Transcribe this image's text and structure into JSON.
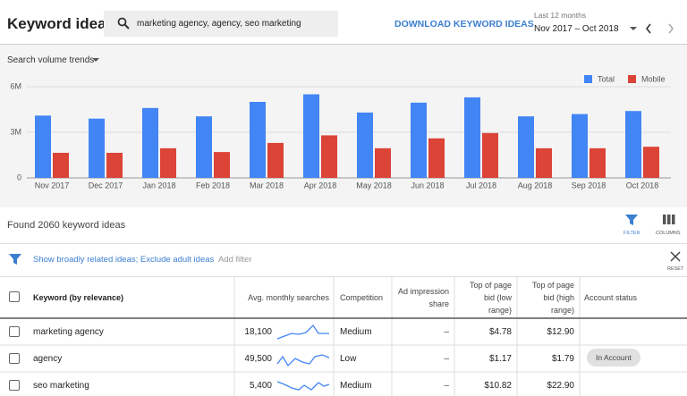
{
  "header": {
    "title": "Keyword ideas",
    "search": "marketing agency, agency, seo marketing",
    "download": "DOWNLOAD KEYWORD IDEAS",
    "range_label": "Last 12 months",
    "range": "Nov 2017 – Oct 2018"
  },
  "chart_data": {
    "type": "bar",
    "title": "Search volume trends",
    "categories": [
      "Nov 2017",
      "Dec 2017",
      "Jan 2018",
      "Feb 2018",
      "Mar 2018",
      "Apr 2018",
      "May 2018",
      "Jun 2018",
      "Jul 2018",
      "Aug 2018",
      "Sep 2018",
      "Oct 2018"
    ],
    "series": [
      {
        "name": "Total",
        "color": "#4285f4",
        "values": [
          4100000,
          3900000,
          4600000,
          4050000,
          5000000,
          5500000,
          4300000,
          4950000,
          5300000,
          4050000,
          4200000,
          4400000
        ]
      },
      {
        "name": "Mobile",
        "color": "#db4437",
        "values": [
          1650000,
          1650000,
          1950000,
          1700000,
          2300000,
          2800000,
          1950000,
          2600000,
          2950000,
          1950000,
          1950000,
          2050000
        ]
      }
    ],
    "ylim": [
      0,
      6000000
    ],
    "yticks": [
      0,
      {
        "value": 3000000,
        "label": "3M"
      },
      {
        "value": 6000000,
        "label": "6M"
      }
    ],
    "grid": true,
    "legend": "top-right"
  },
  "results": {
    "summary": "Found 2060 keyword ideas",
    "filter": "FILTER",
    "columns": "COLUMNS",
    "filter_text": "Show broadly related ideas; Exclude adult ideas",
    "add_filter": "Add filter",
    "reset": "RESET"
  },
  "table": {
    "columns": [
      "Keyword (by relevance)",
      "Avg. monthly searches",
      "Competition",
      "Ad impression share",
      "Top of page bid (low range)",
      "Top of page bid (high range)",
      "Account status"
    ],
    "rows": [
      {
        "keyword": "marketing agency",
        "searches": "18,100",
        "competition": "Medium",
        "impression_share": "–",
        "bid_low": "$4.78",
        "bid_high": "$12.90"
      },
      {
        "keyword": "agency",
        "searches": "49,500",
        "competition": "Low",
        "impression_share": "–",
        "bid_low": "$1.17",
        "bid_high": "$1.79",
        "status": "In Account"
      },
      {
        "keyword": "seo marketing",
        "searches": "5,400",
        "competition": "Medium",
        "impression_share": "–",
        "bid_low": "$10.82",
        "bid_high": "$22.90"
      }
    ]
  }
}
